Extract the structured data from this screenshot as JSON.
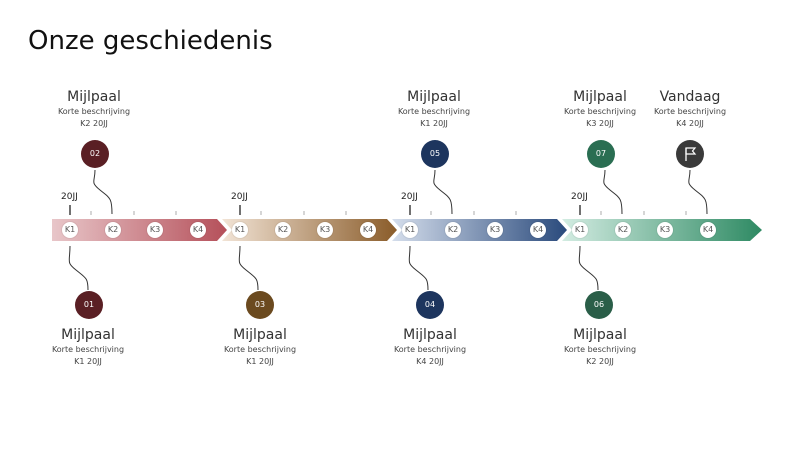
{
  "title": "Onze geschiedenis",
  "colors": {
    "seg1": [
      "#e8c6c9",
      "#b5505a"
    ],
    "seg2": [
      "#f2e4d6",
      "#8a5c2a"
    ],
    "seg3": [
      "#d5deec",
      "#2a4a7c"
    ],
    "seg4": [
      "#d3ece2",
      "#2e8a63"
    ]
  },
  "segments": [
    {
      "year": "20JJ",
      "quarters": [
        "K1",
        "K2",
        "K3",
        "K4"
      ]
    },
    {
      "year": "20JJ",
      "quarters": [
        "K1",
        "K2",
        "K3",
        "K4"
      ]
    },
    {
      "year": "20JJ",
      "quarters": [
        "K1",
        "K2",
        "K3",
        "K4"
      ]
    },
    {
      "year": "20JJ",
      "quarters": [
        "K1",
        "K2",
        "K3",
        "K4"
      ]
    }
  ],
  "milestones": [
    {
      "number": "01",
      "title": "Mijlpaal",
      "description": "Korte beschrijving",
      "date": "K1 20JJ",
      "color": "#5a1f24"
    },
    {
      "number": "02",
      "title": "Mijlpaal",
      "description": "Korte beschrijving",
      "date": "K2 20JJ",
      "color": "#5a1f24"
    },
    {
      "number": "03",
      "title": "Mijlpaal",
      "description": "Korte beschrijving",
      "date": "K1 20JJ",
      "color": "#6b4a1f"
    },
    {
      "number": "04",
      "title": "Mijlpaal",
      "description": "Korte beschrijving",
      "date": "K4 20JJ",
      "color": "#1d355e"
    },
    {
      "number": "05",
      "title": "Mijlpaal",
      "description": "Korte beschrijving",
      "date": "K1 20JJ",
      "color": "#1d355e"
    },
    {
      "number": "06",
      "title": "Mijlpaal",
      "description": "Korte beschrijving",
      "date": "K2 20JJ",
      "color": "#2a5e48"
    },
    {
      "number": "07",
      "title": "Mijlpaal",
      "description": "Korte beschrijving",
      "date": "K3 20JJ",
      "color": "#2a6e52"
    }
  ],
  "today": {
    "title": "Vandaag",
    "description": "Korte beschrijving",
    "date": "K4 20JJ",
    "icon": "flag-icon",
    "color": "#3a3a3a"
  }
}
